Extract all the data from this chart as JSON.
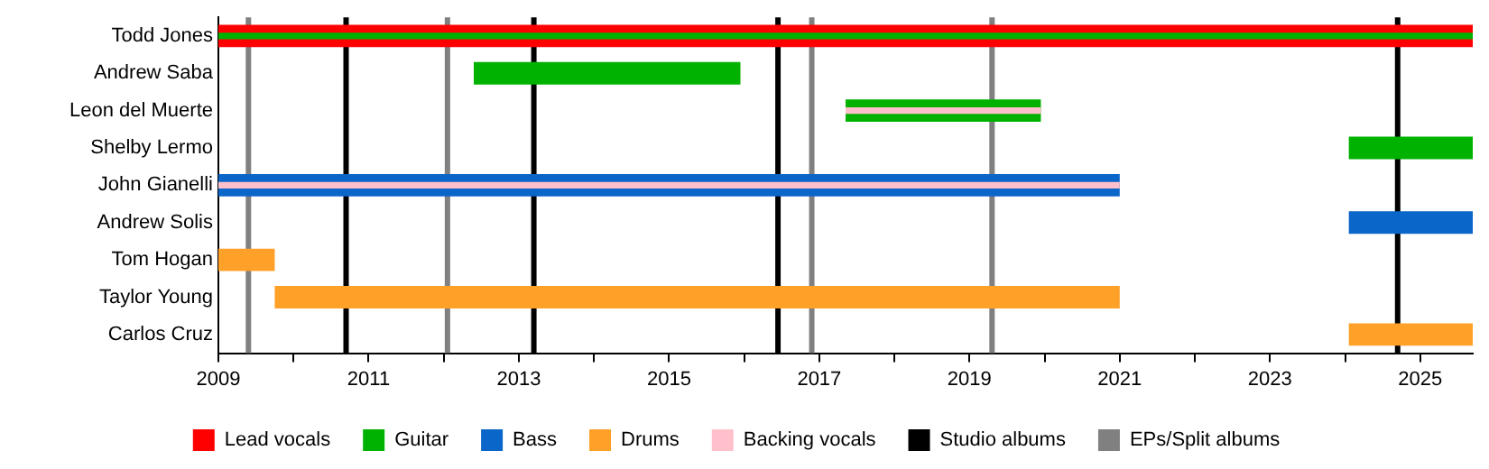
{
  "chart_data": {
    "type": "bar",
    "orientation": "horizontal",
    "stacked": false,
    "categories": [
      "Todd Jones",
      "Andrew Saba",
      "Leon del Muerte",
      "Shelby Lermo",
      "John Gianelli",
      "Andrew Solis",
      "Tom Hogan",
      "Taylor Young",
      "Carlos Cruz"
    ],
    "series": [
      {
        "name": "Lead vocals",
        "color": "#ff0000",
        "values": [
          16.7,
          null,
          null,
          null,
          null,
          null,
          null,
          null,
          null
        ],
        "base": [
          2009,
          null,
          null,
          null,
          null,
          null,
          null,
          null,
          null
        ]
      },
      {
        "name": "Guitar",
        "color": "#00b200",
        "values": [
          16.7,
          3.55,
          2.6,
          1.65,
          null,
          null,
          null,
          null,
          null
        ],
        "base": [
          2009,
          2012.4,
          2017.35,
          2024.05,
          null,
          null,
          null,
          null,
          null
        ]
      },
      {
        "name": "Bass",
        "color": "#0a66c8",
        "values": [
          null,
          null,
          null,
          null,
          12.0,
          1.65,
          null,
          null,
          null
        ],
        "base": [
          null,
          null,
          null,
          null,
          2009,
          2024.05,
          null,
          null,
          null
        ]
      },
      {
        "name": "Drums",
        "color": "#ffa028",
        "values": [
          null,
          null,
          null,
          null,
          null,
          null,
          0.75,
          11.25,
          1.65
        ],
        "base": [
          null,
          null,
          null,
          null,
          null,
          null,
          2009,
          2009.75,
          2024.05
        ]
      },
      {
        "name": "Backing vocals",
        "color": "#ffc0cb",
        "values": [
          null,
          null,
          2.6,
          null,
          12.0,
          null,
          null,
          null,
          null
        ],
        "base": [
          null,
          null,
          2017.35,
          null,
          2009,
          null,
          null,
          null,
          null
        ]
      }
    ],
    "xlim": [
      2009,
      2025.7
    ],
    "xticks": [
      2009,
      {
        "value": 2010,
        "label": null
      },
      2011,
      {
        "value": 2012,
        "label": null
      },
      2013,
      {
        "value": 2014,
        "label": null
      },
      2015,
      {
        "value": 2016,
        "label": null
      },
      2017,
      {
        "value": 2018,
        "label": null
      },
      2019,
      {
        "value": 2020,
        "label": null
      },
      2021,
      {
        "value": 2022,
        "label": null
      },
      2023,
      {
        "value": 2024,
        "label": null
      },
      2025
    ],
    "ref_lines": [
      {
        "axis": "x",
        "value": 2010.7,
        "label": "Studio albums",
        "color": "#000000"
      },
      {
        "axis": "x",
        "value": 2013.2,
        "color": "#000000"
      },
      {
        "axis": "x",
        "value": 2016.45,
        "color": "#000000"
      },
      {
        "axis": "x",
        "value": 2024.7,
        "color": "#000000"
      },
      {
        "axis": "x",
        "value": 2009.4,
        "label": "EPs/Split albums",
        "color": "#808080"
      },
      {
        "axis": "x",
        "value": 2012.05,
        "color": "#808080"
      },
      {
        "axis": "x",
        "value": 2016.9,
        "color": "#808080"
      },
      {
        "axis": "x",
        "value": 2019.3,
        "color": "#808080"
      }
    ],
    "grid": false,
    "legend": "bottom"
  }
}
